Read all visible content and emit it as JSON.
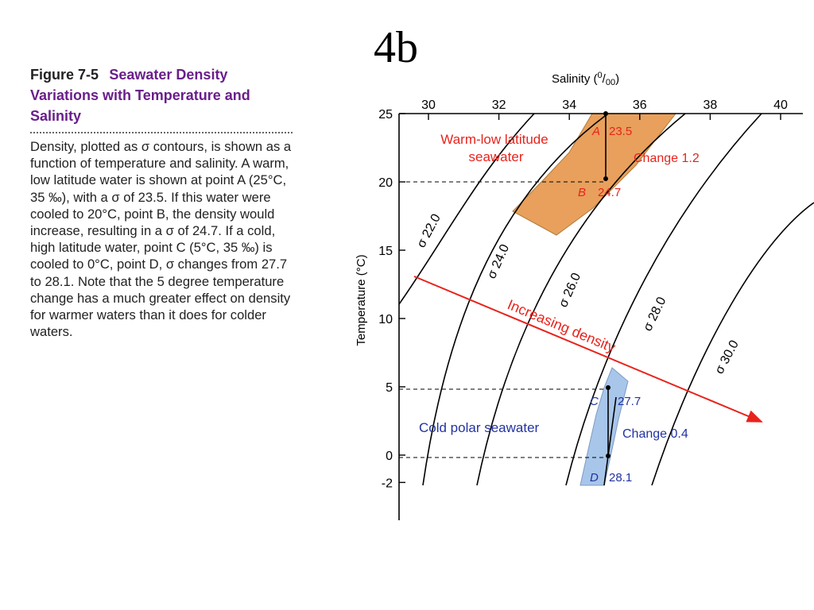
{
  "slide": {
    "title": "4b"
  },
  "caption": {
    "figure_label": "Figure 7-5",
    "figure_title": "Seawater Density Variations with Temperature and Salinity",
    "body": "Density, plotted as σ contours, is shown as a function of temperature and salinity. A warm, low latitude water is shown at point A (25°C, 35 ‰), with a σ of 23.5. If this water were cooled to 20°C, point B, the density would increase, resulting in a σ of 24.7. If a cold, high latitude water, point C (5°C, 35 ‰) is cooled to 0°C, point D, σ changes from 27.7 to 28.1. Note that the 5 degree temperature change has a much greater effect on density for warmer waters than it does for colder waters."
  },
  "chart_data": {
    "type": "diagram",
    "x_axis": {
      "label_prefix": "Salinity (",
      "label_num": "0",
      "label_den": "00",
      "label_suffix": ")",
      "ticks": [
        30,
        32,
        34,
        36,
        38,
        40
      ],
      "range": [
        28.6,
        41
      ]
    },
    "y_axis": {
      "label": "Temperature (°C)",
      "ticks": [
        25,
        20,
        15,
        10,
        5,
        0,
        -2
      ],
      "range": [
        -4,
        25
      ]
    },
    "contours": [
      {
        "label": "σ 22.0",
        "sigma": 22.0
      },
      {
        "label": "σ 24.0",
        "sigma": 24.0
      },
      {
        "label": "σ 26.0",
        "sigma": 26.0
      },
      {
        "label": "σ 28.0",
        "sigma": 28.0
      },
      {
        "label": "σ 30.0",
        "sigma": 30.0
      }
    ],
    "points": [
      {
        "letter": "A",
        "salinity": 35,
        "temperature": 25,
        "value": "23.5"
      },
      {
        "letter": "B",
        "salinity": 35,
        "temperature": 20,
        "value": "24.7"
      },
      {
        "letter": "C",
        "salinity": 35,
        "temperature": 5,
        "value": "27.7"
      },
      {
        "letter": "D",
        "salinity": 35,
        "temperature": 0,
        "value": "28.1"
      }
    ],
    "regions": [
      {
        "label_line1": "Warm-low latitude",
        "label_line2": "seawater",
        "change": "Change 1.2",
        "color": "#e8a05c"
      },
      {
        "label": "Cold polar seawater",
        "change": "Change 0.4",
        "color": "#a8c6ea"
      }
    ],
    "arrow_label": "Increasing density",
    "colors": {
      "red": "#e8231c",
      "blue": "#2233a0",
      "orange": "#e8a05c",
      "light_blue": "#a8c6ea"
    }
  }
}
